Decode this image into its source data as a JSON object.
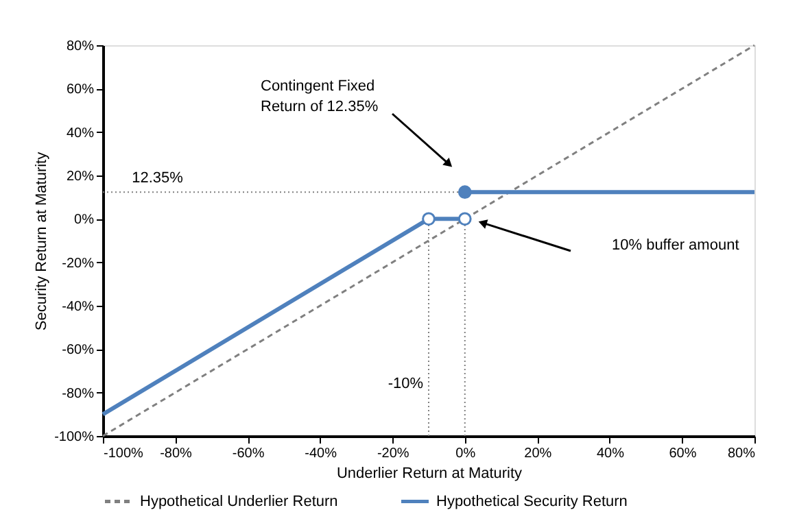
{
  "chart_data": {
    "type": "line",
    "xlabel": "Underlier Return at Maturity",
    "ylabel": "Security Return at Maturity",
    "xlim": [
      -100,
      80
    ],
    "ylim": [
      -100,
      80
    ],
    "xticks": [
      {
        "value": -100,
        "label": "-100%"
      },
      {
        "value": -80,
        "label": "-80%"
      },
      {
        "value": -60,
        "label": "-60%"
      },
      {
        "value": -40,
        "label": "-40%"
      },
      {
        "value": -20,
        "label": "-20%"
      },
      {
        "value": 0,
        "label": "0%"
      },
      {
        "value": 20,
        "label": "20%"
      },
      {
        "value": 40,
        "label": "40%"
      },
      {
        "value": 60,
        "label": "60%"
      },
      {
        "value": 80,
        "label": "80%"
      }
    ],
    "yticks": [
      {
        "value": -100,
        "label": "-100%"
      },
      {
        "value": -80,
        "label": "-80%"
      },
      {
        "value": -60,
        "label": "-60%"
      },
      {
        "value": -40,
        "label": "-40%"
      },
      {
        "value": -20,
        "label": "-20%"
      },
      {
        "value": 0,
        "label": "0%"
      },
      {
        "value": 20,
        "label": "20%"
      },
      {
        "value": 40,
        "label": "40%"
      },
      {
        "value": 60,
        "label": "60%"
      },
      {
        "value": 80,
        "label": "80%"
      }
    ],
    "grid": false,
    "legend": "bottom",
    "series": [
      {
        "x": [
          -100,
          0
        ],
        "values": [
          12.35,
          12.35
        ],
        "color": "#808080",
        "line_style": "dotted"
      },
      {
        "x": [
          -10,
          -10
        ],
        "values": [
          -100,
          0
        ],
        "color": "#808080",
        "line_style": "dotted"
      },
      {
        "x": [
          0,
          0
        ],
        "values": [
          -100,
          0
        ],
        "color": "#808080",
        "line_style": "dotted"
      },
      {
        "name": "Hypothetical Underlier Return",
        "x": [
          -100,
          80
        ],
        "values": [
          -100,
          80
        ],
        "color": "#808080",
        "line_style": "dashed"
      },
      {
        "name": "Hypothetical Security Return",
        "x": [
          -100,
          -10,
          0
        ],
        "values": [
          -90,
          0,
          0
        ],
        "color": "#4f81bd",
        "line_style": "solid"
      },
      {
        "x": [
          0,
          80
        ],
        "values": [
          12.35,
          12.35
        ],
        "color": "#4f81bd",
        "line_style": "solid"
      },
      {
        "type": "scatter",
        "x": [
          0
        ],
        "values": [
          12.35
        ],
        "color": "#4f81bd",
        "marker": "circle"
      },
      {
        "type": "scatter",
        "x": [
          -10,
          0
        ],
        "values": [
          0,
          0
        ],
        "color": "#ffffff",
        "marker": "circle"
      }
    ],
    "annotations": [
      "Contingent Fixed\nReturn of 12.35%",
      "10% buffer amount",
      {
        "text": "12.35%",
        "x": -92,
        "y": 12.35
      },
      {
        "text": "-10%",
        "x": -10,
        "y": -76
      }
    ]
  }
}
